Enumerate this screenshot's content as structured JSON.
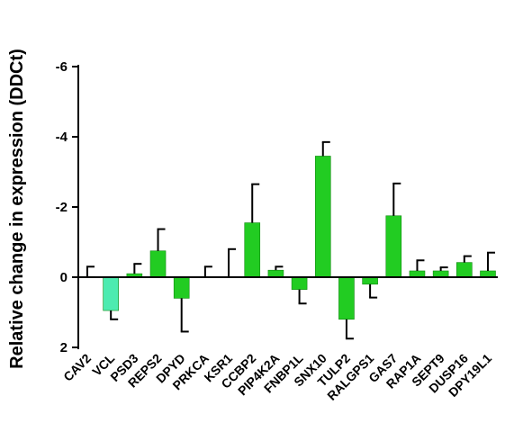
{
  "chart_data": {
    "type": "bar",
    "title": "",
    "xlabel": "",
    "ylabel": "Relative change in expression (DDCt)",
    "y_inverted": true,
    "ylim": [
      2,
      -6
    ],
    "yticks": [
      2,
      0,
      -2,
      -4,
      -6
    ],
    "grid": false,
    "categories": [
      "CAV2",
      "VCL",
      "PSD3",
      "REPS2",
      "DPYD",
      "PRKCA",
      "KSR1",
      "CCBP2",
      "PIP4K2A",
      "FNBP1L",
      "SNX10",
      "TULP2",
      "RALGPS1",
      "GAS7",
      "RAP1A",
      "SEPT9",
      "DUSP16",
      "DPY19L1"
    ],
    "values": [
      -0.02,
      0.95,
      -0.1,
      -0.75,
      0.6,
      0.0,
      0.0,
      -1.55,
      -0.2,
      0.35,
      -3.45,
      1.2,
      0.2,
      -1.75,
      -0.18,
      -0.18,
      -0.42,
      -0.18
    ],
    "error_bars": [
      0.28,
      0.25,
      0.28,
      0.62,
      0.95,
      0.3,
      0.8,
      1.1,
      0.1,
      0.4,
      0.4,
      0.55,
      0.38,
      0.92,
      0.3,
      0.1,
      0.18,
      0.52
    ],
    "bar_colors": [
      "#22CC22",
      "#4DEBB0",
      "#22CC22",
      "#22CC22",
      "#22CC22",
      "#22CC22",
      "#22CC22",
      "#22CC22",
      "#22CC22",
      "#22CC22",
      "#22CC22",
      "#22CC22",
      "#22CC22",
      "#22CC22",
      "#22CC22",
      "#22CC22",
      "#22CC22",
      "#22CC22"
    ],
    "bar_stroke": "#118811"
  }
}
